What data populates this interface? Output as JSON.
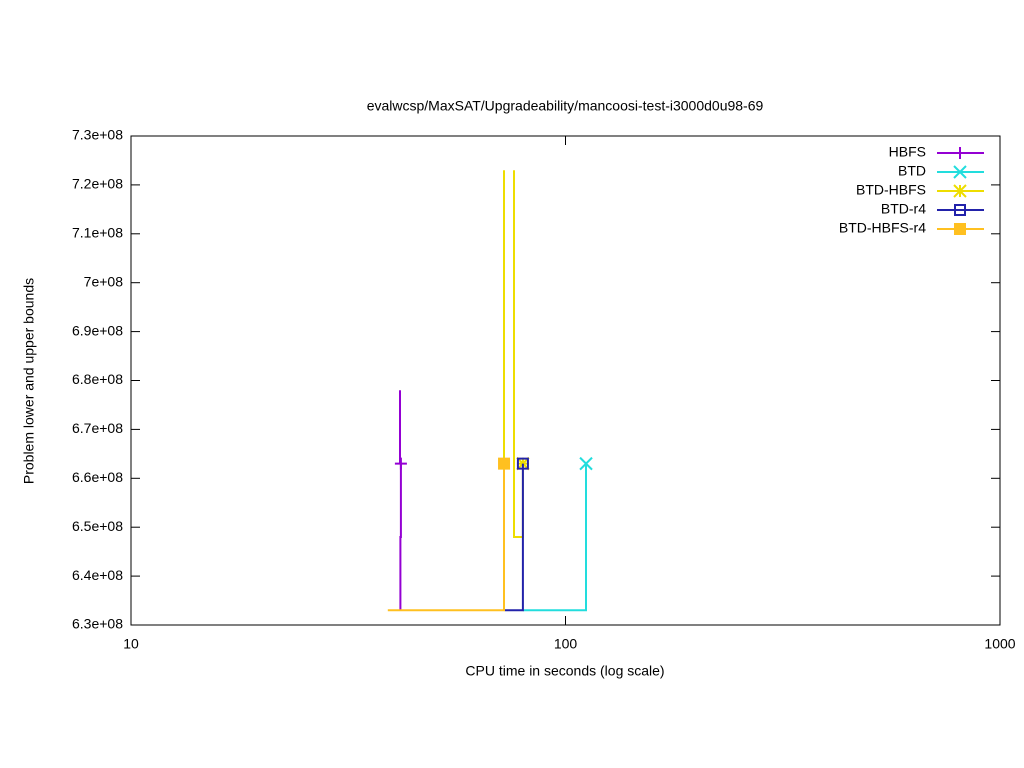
{
  "chart_data": {
    "type": "line",
    "title": "evalwcsp/MaxSAT/Upgradeability/mancoosi-test-i3000d0u98-69",
    "x_label": "CPU time in seconds (log scale)",
    "y_label": "Problem lower and upper bounds",
    "xscale": "log",
    "xlim": [
      10,
      1000
    ],
    "xticks": [
      10,
      100,
      1000
    ],
    "ylim": [
      630000000,
      730000000
    ],
    "yticks": [
      {
        "value": 630000000,
        "label": "6.3e+08"
      },
      {
        "value": 640000000,
        "label": "6.4e+08"
      },
      {
        "value": 650000000,
        "label": "6.5e+08"
      },
      {
        "value": 660000000,
        "label": "6.6e+08"
      },
      {
        "value": 670000000,
        "label": "6.7e+08"
      },
      {
        "value": 680000000,
        "label": "6.8e+08"
      },
      {
        "value": 690000000,
        "label": "6.9e+08"
      },
      {
        "value": 700000000,
        "label": "7e+08"
      },
      {
        "value": 710000000,
        "label": "7.1e+08"
      },
      {
        "value": 720000000,
        "label": "7.2e+08"
      },
      {
        "value": 730000000,
        "label": "7.3e+08"
      }
    ],
    "legend": "top-right",
    "series": [
      {
        "name": "HBFS",
        "color": "#9400d3",
        "marker": "plus",
        "x": [
          41.6,
          41.6,
          null,
          41.7,
          41.7,
          41.8,
          41.8
        ],
        "values": [
          678000000,
          663000000,
          null,
          633000000,
          648000000,
          648000000,
          663000000
        ]
      },
      {
        "name": "BTD",
        "color": "#22dddd",
        "marker": "cross",
        "x": [
          79.8,
          111.5,
          111.5
        ],
        "values": [
          633000000,
          633000000,
          663000000
        ]
      },
      {
        "name": "BTD-HBFS",
        "color": "#eedd00",
        "marker": "star",
        "x": [
          72.2,
          72.2,
          null,
          76.1,
          76.1,
          79.8,
          79.8
        ],
        "values": [
          723000000,
          633000000,
          null,
          723000000,
          648000000,
          648000000,
          663000000
        ]
      },
      {
        "name": "BTD-r4",
        "color": "#2222aa",
        "marker": "square",
        "x": [
          72.5,
          79.8,
          79.8
        ],
        "values": [
          633000000,
          633000000,
          663000000
        ]
      },
      {
        "name": "BTD-HBFS-r4",
        "color": "#ffc020",
        "marker": "filled-square",
        "x": [
          39.0,
          72.2,
          72.2
        ],
        "values": [
          633000000,
          633000000,
          663000000
        ]
      }
    ]
  }
}
